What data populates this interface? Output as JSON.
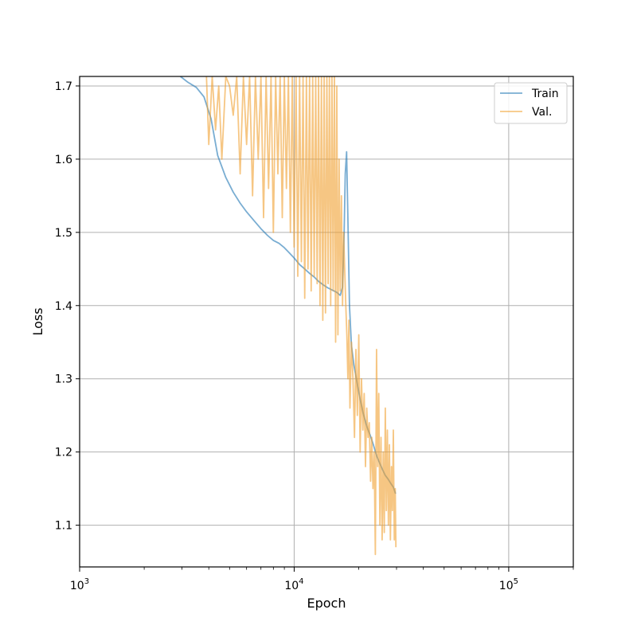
{
  "chart_data": {
    "type": "line",
    "title": "",
    "xlabel": "Epoch",
    "ylabel": "Loss",
    "xscale": "log",
    "xlim": [
      1000,
      200000
    ],
    "ylim": [
      1.043,
      1.713
    ],
    "grid": true,
    "legend_position": "top-right",
    "x_ticks": [
      {
        "value": 1000,
        "base": "10",
        "exp": "3"
      },
      {
        "value": 10000,
        "base": "10",
        "exp": "4"
      },
      {
        "value": 100000,
        "base": "10",
        "exp": "5"
      }
    ],
    "y_ticks": [
      {
        "value": 1.1,
        "label": "1.1"
      },
      {
        "value": 1.2,
        "label": "1.2"
      },
      {
        "value": 1.3,
        "label": "1.3"
      },
      {
        "value": 1.4,
        "label": "1.4"
      },
      {
        "value": 1.5,
        "label": "1.5"
      },
      {
        "value": 1.6,
        "label": "1.6"
      },
      {
        "value": 1.7,
        "label": "1.7"
      }
    ],
    "series": [
      {
        "name": "Train",
        "color": "#1f77b4",
        "x": [
          2950,
          3200,
          3500,
          3800,
          4100,
          4400,
          4800,
          5200,
          5600,
          6000,
          6500,
          7000,
          7500,
          8000,
          8500,
          9000,
          9500,
          10000,
          10600,
          11200,
          11800,
          12400,
          13000,
          13700,
          14400,
          15100,
          15800,
          16400,
          16800,
          17100,
          17300,
          17550,
          17800,
          18100,
          18500,
          19000,
          19600,
          20300,
          21000,
          21800,
          22600,
          23400,
          24200,
          25000,
          25800,
          26600,
          27400,
          28200,
          29000,
          29700
        ],
        "y": [
          1.713,
          1.705,
          1.698,
          1.685,
          1.655,
          1.605,
          1.575,
          1.555,
          1.54,
          1.528,
          1.516,
          1.505,
          1.496,
          1.489,
          1.485,
          1.479,
          1.472,
          1.465,
          1.456,
          1.45,
          1.444,
          1.439,
          1.433,
          1.428,
          1.424,
          1.421,
          1.418,
          1.414,
          1.425,
          1.5,
          1.58,
          1.61,
          1.52,
          1.4,
          1.345,
          1.318,
          1.296,
          1.272,
          1.252,
          1.235,
          1.223,
          1.21,
          1.195,
          1.185,
          1.176,
          1.168,
          1.163,
          1.157,
          1.152,
          1.143
        ]
      },
      {
        "name": "Val.",
        "color": "#f0a030",
        "x": [
          3900,
          4000,
          4150,
          4300,
          4450,
          4600,
          4800,
          5000,
          5200,
          5400,
          5600,
          5800,
          6000,
          6200,
          6400,
          6600,
          6800,
          7000,
          7200,
          7400,
          7600,
          7800,
          8000,
          8200,
          8400,
          8600,
          8800,
          9000,
          9200,
          9400,
          9600,
          9800,
          10000,
          10200,
          10400,
          10600,
          10800,
          11000,
          11200,
          11400,
          11600,
          11800,
          12000,
          12200,
          12400,
          12600,
          12800,
          13000,
          13200,
          13400,
          13600,
          13800,
          14000,
          14200,
          14400,
          14600,
          14800,
          15000,
          15200,
          15400,
          15600,
          15800,
          16000,
          16200,
          16400,
          16600,
          16800,
          17000,
          17200,
          17400,
          17600,
          17800,
          18000,
          18200,
          18500,
          18800,
          19100,
          19400,
          19700,
          20000,
          20300,
          20600,
          20900,
          21200,
          21500,
          21800,
          22100,
          22400,
          22700,
          23000,
          23300,
          23600,
          23900,
          24200,
          24500,
          24800,
          25100,
          25400,
          25700,
          26000,
          26300,
          26600,
          26900,
          27200,
          27500,
          27800,
          28100,
          28400,
          28700,
          29000,
          29300,
          29600,
          29800
        ],
        "y": [
          1.713,
          1.62,
          1.713,
          1.64,
          1.7,
          1.6,
          1.713,
          1.7,
          1.66,
          1.713,
          1.58,
          1.713,
          1.62,
          1.713,
          1.55,
          1.713,
          1.6,
          1.713,
          1.52,
          1.713,
          1.56,
          1.713,
          1.5,
          1.713,
          1.58,
          1.713,
          1.52,
          1.713,
          1.56,
          1.713,
          1.5,
          1.713,
          1.48,
          1.713,
          1.44,
          1.713,
          1.46,
          1.713,
          1.41,
          1.713,
          1.45,
          1.713,
          1.42,
          1.713,
          1.44,
          1.713,
          1.43,
          1.713,
          1.4,
          1.713,
          1.38,
          1.713,
          1.39,
          1.713,
          1.43,
          1.713,
          1.4,
          1.713,
          1.42,
          1.713,
          1.35,
          1.7,
          1.36,
          1.6,
          1.42,
          1.55,
          1.4,
          1.5,
          1.45,
          1.4,
          1.36,
          1.3,
          1.38,
          1.26,
          1.35,
          1.3,
          1.22,
          1.34,
          1.25,
          1.36,
          1.2,
          1.3,
          1.23,
          1.28,
          1.18,
          1.26,
          1.22,
          1.24,
          1.16,
          1.22,
          1.15,
          1.2,
          1.06,
          1.34,
          1.18,
          1.28,
          1.1,
          1.22,
          1.08,
          1.2,
          1.09,
          1.26,
          1.12,
          1.23,
          1.1,
          1.21,
          1.08,
          1.18,
          1.12,
          1.23,
          1.08,
          1.15,
          1.07
        ]
      }
    ]
  }
}
